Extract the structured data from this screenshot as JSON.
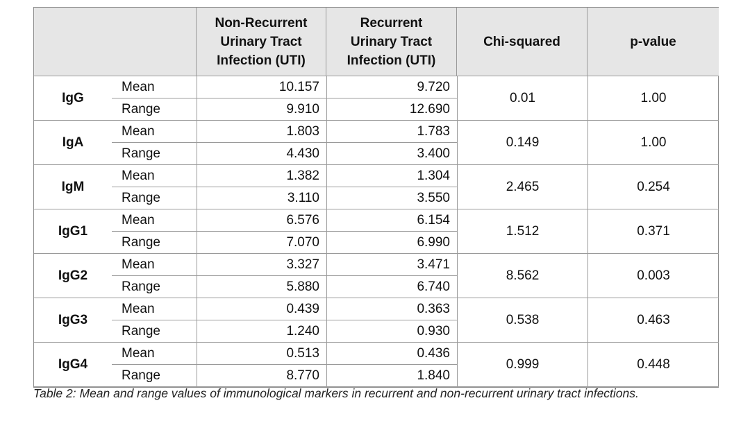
{
  "table": {
    "headers": [
      "",
      "Non-Recurrent\nUrinary Tract\nInfection (UTI)",
      "Recurrent\nUrinary Tract\nInfection (UTI)",
      "Chi-squared",
      "p-value"
    ],
    "rows": [
      {
        "marker": "IgG",
        "mean_label": "Mean",
        "range_label": "Range",
        "nr_mean": "10.157",
        "nr_range": "9.910",
        "r_mean": "9.720",
        "r_range": "12.690",
        "chi": "0.01",
        "p": "1.00"
      },
      {
        "marker": "IgA",
        "mean_label": "Mean",
        "range_label": "Range",
        "nr_mean": "1.803",
        "nr_range": "4.430",
        "r_mean": "1.783",
        "r_range": "3.400",
        "chi": "0.149",
        "p": "1.00"
      },
      {
        "marker": "IgM",
        "mean_label": "Mean",
        "range_label": "Range",
        "nr_mean": "1.382",
        "nr_range": "3.110",
        "r_mean": "1.304",
        "r_range": "3.550",
        "chi": "2.465",
        "p": "0.254"
      },
      {
        "marker": "IgG1",
        "mean_label": "Mean",
        "range_label": "Range",
        "nr_mean": "6.576",
        "nr_range": "7.070",
        "r_mean": "6.154",
        "r_range": "6.990",
        "chi": "1.512",
        "p": "0.371"
      },
      {
        "marker": "IgG2",
        "mean_label": "Mean",
        "range_label": "Range",
        "nr_mean": "3.327",
        "nr_range": "5.880",
        "r_mean": "3.471",
        "r_range": "6.740",
        "chi": "8.562",
        "p": "0.003"
      },
      {
        "marker": "IgG3",
        "mean_label": "Mean",
        "range_label": "Range",
        "nr_mean": "0.439",
        "nr_range": "1.240",
        "r_mean": "0.363",
        "r_range": "0.930",
        "chi": "0.538",
        "p": "0.463"
      },
      {
        "marker": "IgG4",
        "mean_label": "Mean",
        "range_label": "Range",
        "nr_mean": "0.513",
        "nr_range": "8.770",
        "r_mean": "0.436",
        "r_range": "1.840",
        "chi": "0.999",
        "p": "0.448"
      }
    ]
  },
  "caption": "Table 2: Mean and range values of immunological markers in recurrent and non-recurrent urinary tract infections."
}
